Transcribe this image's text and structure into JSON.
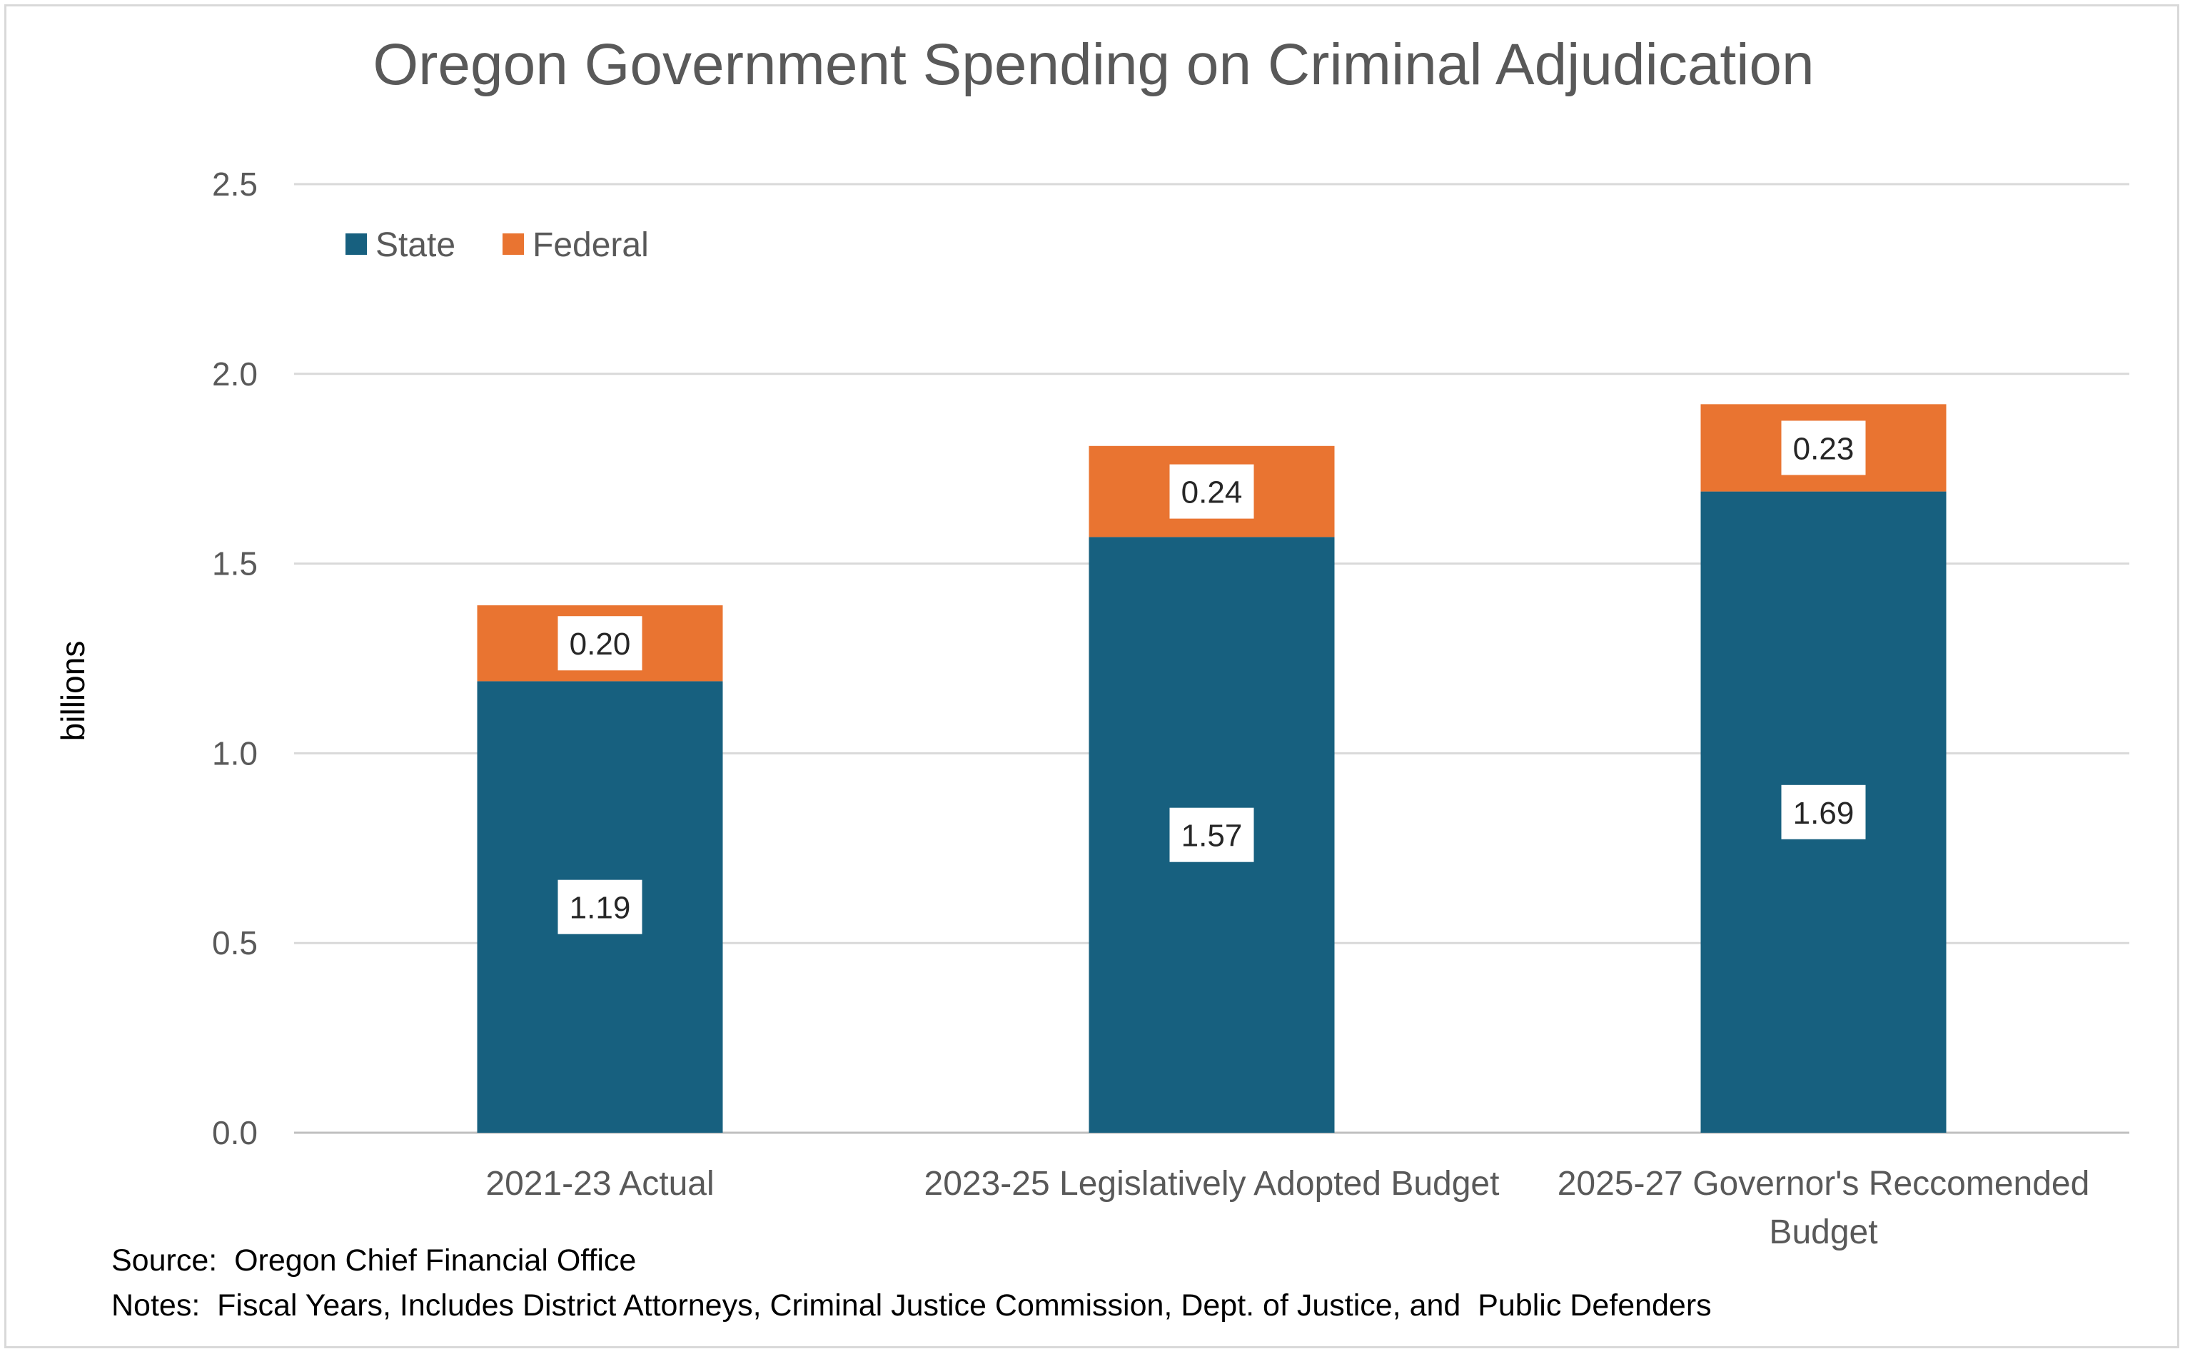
{
  "chart_data": {
    "type": "bar",
    "stacked": true,
    "title": "Oregon Government Spending on Criminal Adjudication",
    "ylabel": "billions",
    "xlabel": "",
    "ylim": [
      0,
      2.5
    ],
    "yticks": [
      "0.0",
      "0.5",
      "1.0",
      "1.5",
      "2.0",
      "2.5"
    ],
    "grid": true,
    "legend_position": "top-left",
    "categories": [
      [
        "2021-23 Actual"
      ],
      [
        "2023-25 Legislatively Adopted Budget"
      ],
      [
        "2025-27 Governor's Reccomended",
        "Budget"
      ]
    ],
    "series": [
      {
        "name": "State",
        "color": "#17607f",
        "values": [
          1.19,
          1.57,
          1.69
        ],
        "labels": [
          "1.19",
          "1.57",
          "1.69"
        ]
      },
      {
        "name": "Federal",
        "color": "#e97431",
        "values": [
          0.2,
          0.24,
          0.23
        ],
        "labels": [
          "0.20",
          "0.24",
          "0.23"
        ]
      }
    ]
  },
  "footer": {
    "source": "Source:  Oregon Chief Financial Office",
    "notes": "Notes:  Fiscal Years, Includes District Attorneys, Criminal Justice Commission, Dept. of Justice, and  Public Defenders"
  }
}
